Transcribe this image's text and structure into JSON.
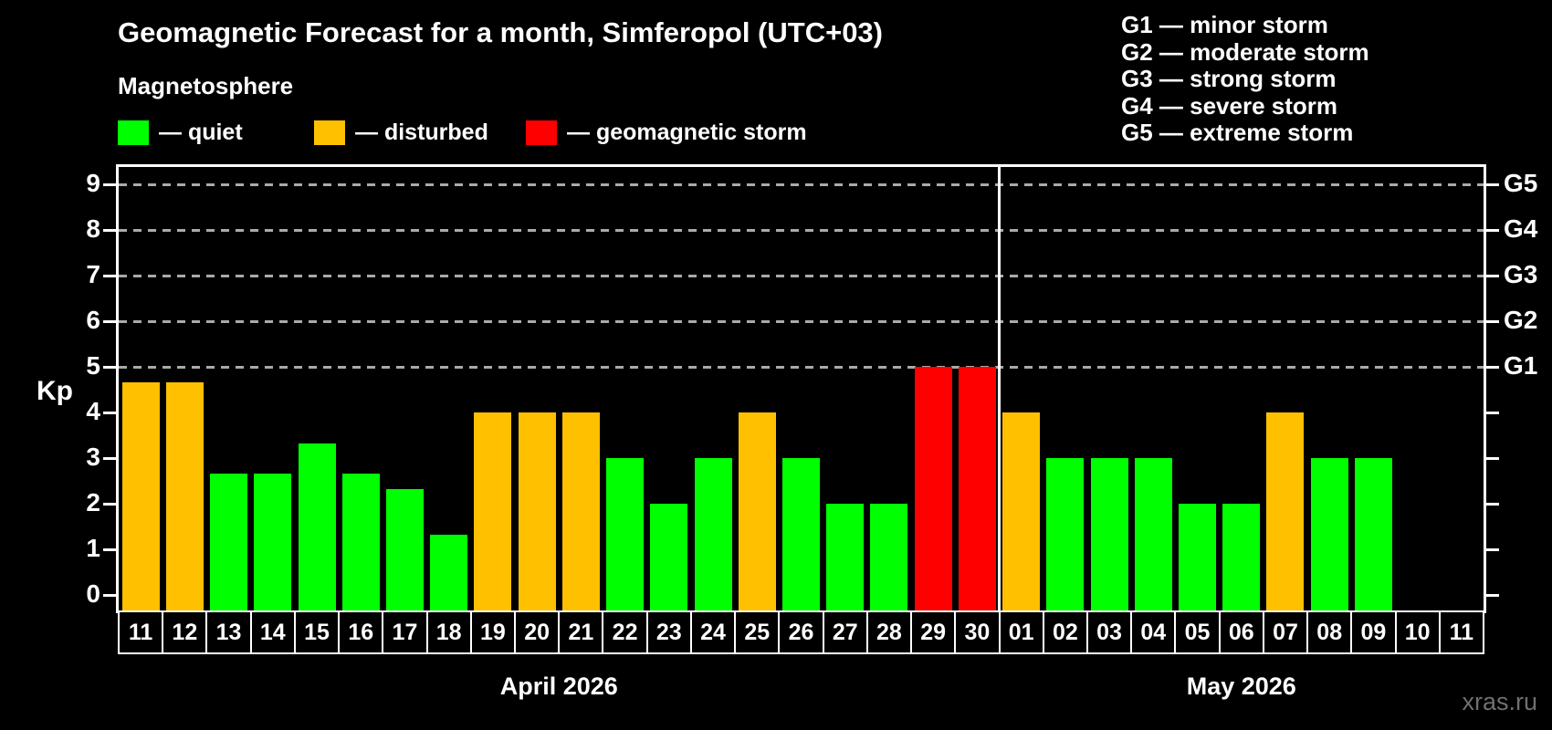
{
  "title": "Geomagnetic Forecast for a month, Simferopol (UTC+03)",
  "subtitle": "Magnetosphere",
  "legend": {
    "items": [
      {
        "key": "quiet",
        "label": "— quiet",
        "color": "#00ff00"
      },
      {
        "key": "disturbed",
        "label": "— disturbed",
        "color": "#ffc000"
      },
      {
        "key": "storm",
        "label": "— geomagnetic storm",
        "color": "#ff0000"
      }
    ]
  },
  "g_legend": [
    "G1 — minor storm",
    "G2 — moderate storm",
    "G3 — strong storm",
    "G4 — severe storm",
    "G5 — extreme storm"
  ],
  "axis": {
    "kp_label": "Kp",
    "y_ticks": [
      0,
      1,
      2,
      3,
      4,
      5,
      6,
      7,
      8,
      9
    ],
    "g_labels": [
      {
        "text": "G5",
        "kp": 9
      },
      {
        "text": "G4",
        "kp": 8
      },
      {
        "text": "G3",
        "kp": 7
      },
      {
        "text": "G2",
        "kp": 6
      },
      {
        "text": "G1",
        "kp": 5
      }
    ]
  },
  "months": [
    {
      "label": "April 2026",
      "count": 20
    },
    {
      "label": "May 2026",
      "count": 11
    }
  ],
  "watermark": "xras.ru",
  "colors": {
    "background": "#000000",
    "axis": "#ffffff",
    "gridline": "#aaaaaa",
    "quiet": "#00ff00",
    "disturbed": "#ffc000",
    "storm": "#ff0000"
  },
  "chart_data": {
    "type": "bar",
    "title": "Geomagnetic Forecast for a month, Simferopol (UTC+03)",
    "xlabel": "",
    "ylabel": "Kp",
    "ylim": [
      0,
      9
    ],
    "grid_levels": [
      5,
      6,
      7,
      8,
      9
    ],
    "legend_position": "top",
    "categories": [
      "11",
      "12",
      "13",
      "14",
      "15",
      "16",
      "17",
      "18",
      "19",
      "20",
      "21",
      "22",
      "23",
      "24",
      "25",
      "26",
      "27",
      "28",
      "29",
      "30",
      "01",
      "02",
      "03",
      "04",
      "05",
      "06",
      "07",
      "08",
      "09",
      "10",
      "11"
    ],
    "values": [
      4.67,
      4.67,
      2.67,
      2.67,
      3.33,
      2.67,
      2.33,
      1.33,
      4,
      4,
      4,
      3,
      2,
      3,
      4,
      3,
      2,
      2,
      5,
      5,
      4,
      3,
      3,
      3,
      2,
      2,
      4,
      3,
      3,
      null,
      null
    ],
    "statuses": [
      "disturbed",
      "disturbed",
      "quiet",
      "quiet",
      "quiet",
      "quiet",
      "quiet",
      "quiet",
      "disturbed",
      "disturbed",
      "disturbed",
      "quiet",
      "quiet",
      "quiet",
      "disturbed",
      "quiet",
      "quiet",
      "quiet",
      "storm",
      "storm",
      "disturbed",
      "quiet",
      "quiet",
      "quiet",
      "quiet",
      "quiet",
      "disturbed",
      "quiet",
      "quiet",
      "none",
      "none"
    ],
    "status_colors": {
      "quiet": "#00ff00",
      "disturbed": "#ffc000",
      "storm": "#ff0000"
    },
    "month_groups": [
      {
        "label": "April 2026",
        "count": 20
      },
      {
        "label": "May 2026",
        "count": 11
      }
    ]
  }
}
